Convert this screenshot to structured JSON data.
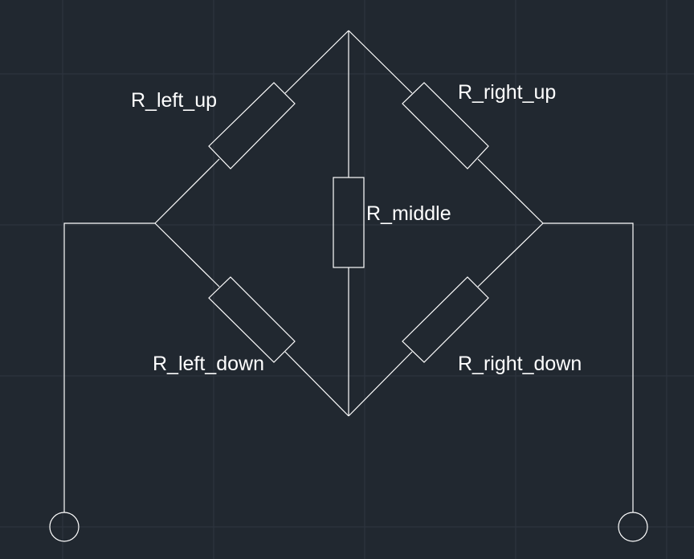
{
  "diagram": {
    "background": "#212830",
    "line_color": "#ffffff",
    "grid_color": "#2e3640",
    "labels": {
      "r_left_up": "R_left_up",
      "r_right_up": "R_right_up",
      "r_middle": "R_middle",
      "r_left_down": "R_left_down",
      "r_right_down": "R_right_down"
    }
  }
}
